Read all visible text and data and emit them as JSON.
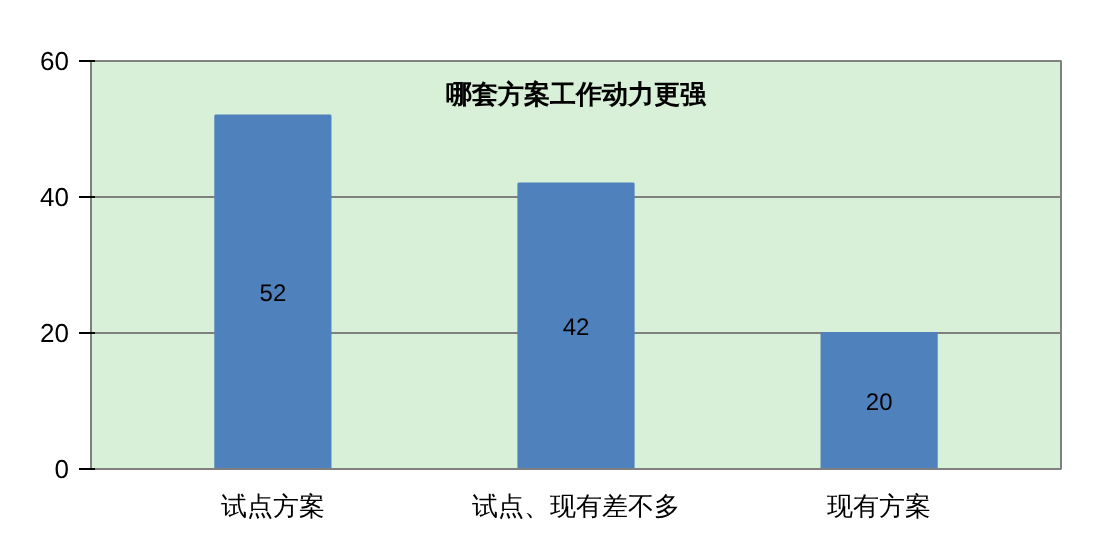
{
  "chart_data": {
    "type": "bar",
    "title": "哪套方案工作动力更强",
    "categories": [
      "试点方案",
      "试点、现有差不多",
      "现有方案"
    ],
    "values": [
      52,
      42,
      20
    ],
    "color": "#4f81bd",
    "ylim": [
      0,
      60
    ],
    "yticks": [
      0,
      20,
      40,
      60
    ],
    "grid": "y",
    "data_labels": true
  }
}
